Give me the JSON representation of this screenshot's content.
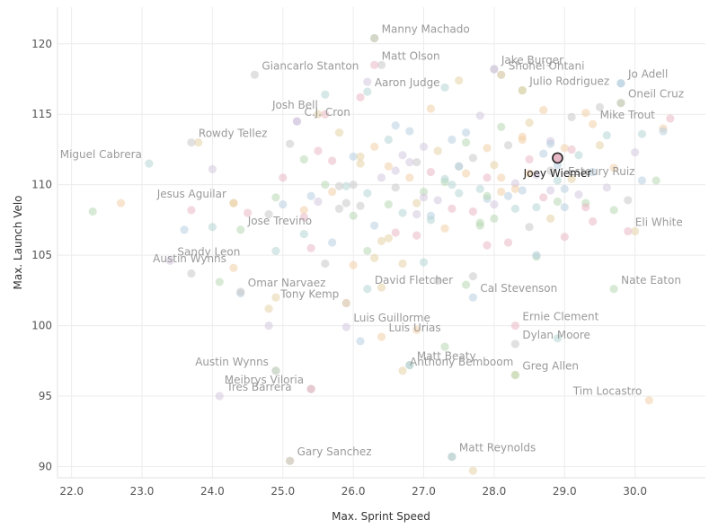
{
  "chart_data": {
    "type": "scatter",
    "xlabel": "Max. Sprint Speed",
    "ylabel": "Max. Launch Velo",
    "xlim": [
      21.8,
      31.0
    ],
    "ylim": [
      89.2,
      122.6
    ],
    "x_ticks": [
      22.0,
      23.0,
      24.0,
      25.0,
      26.0,
      27.0,
      28.0,
      29.0,
      30.0
    ],
    "y_ticks": [
      90,
      95,
      100,
      105,
      110,
      115,
      120
    ],
    "x_tick_labels": [
      "22.0",
      "23.0",
      "24.0",
      "25.0",
      "26.0",
      "27.0",
      "28.0",
      "29.0",
      "30.0"
    ],
    "y_tick_labels": [
      "90",
      "95",
      "100",
      "105",
      "110",
      "115",
      "120"
    ],
    "grid": true,
    "colors": {
      "palette": [
        "#b8d9b5",
        "#f2cfa7",
        "#b8cfe0",
        "#e9b8c4",
        "#c9c9c9",
        "#e6d2a5",
        "#d4c6de",
        "#b5d6d3"
      ],
      "highlight_fill": "#e7b8c6",
      "highlight_stroke": "#222222"
    },
    "highlight": {
      "name": "Joey Wiemer",
      "x": 28.9,
      "y": 111.9
    },
    "labeled_points": [
      {
        "name": "Manny Machado",
        "x": 26.3,
        "y": 120.4
      },
      {
        "name": "Matt Olson",
        "x": 26.3,
        "y": 118.5
      },
      {
        "name": "Jake Burger",
        "x": 28.0,
        "y": 118.2
      },
      {
        "name": "Shohei Ohtani",
        "x": 28.1,
        "y": 117.8
      },
      {
        "name": "Giancarlo Stanton",
        "x": 24.6,
        "y": 117.8
      },
      {
        "name": "Aaron Judge",
        "x": 26.2,
        "y": 116.6
      },
      {
        "name": "Jo Adell",
        "x": 29.8,
        "y": 117.2
      },
      {
        "name": "Julio Rodriguez",
        "x": 28.4,
        "y": 116.7
      },
      {
        "name": "Oneil Cruz",
        "x": 29.8,
        "y": 115.8
      },
      {
        "name": "Josh Bell",
        "x": 25.6,
        "y": 115.0
      },
      {
        "name": "C.J. Cron",
        "x": 25.2,
        "y": 114.5
      },
      {
        "name": "Mike Trout",
        "x": 29.4,
        "y": 114.3
      },
      {
        "name": "Rowdy Tellez",
        "x": 23.7,
        "y": 113.0
      },
      {
        "name": "Miguel Cabrera",
        "x": 23.1,
        "y": 111.5
      },
      {
        "name": "Esteury Ruiz",
        "x": 30.1,
        "y": 110.3
      },
      {
        "name": "Jesus Aguilar",
        "x": 24.3,
        "y": 108.7
      },
      {
        "name": "Jose Trevino",
        "x": 24.4,
        "y": 106.8
      },
      {
        "name": "Eli White",
        "x": 29.9,
        "y": 106.7
      },
      {
        "name": "Sandy Leon",
        "x": 23.4,
        "y": 104.6
      },
      {
        "name": "Austin Wynns",
        "x": 24.3,
        "y": 104.1
      },
      {
        "name": "Omar Narvaez",
        "x": 24.4,
        "y": 102.4
      },
      {
        "name": "David Fletcher",
        "x": 26.2,
        "y": 102.6
      },
      {
        "name": "Cal Stevenson",
        "x": 27.7,
        "y": 102.0
      },
      {
        "name": "Tony Kemp",
        "x": 25.9,
        "y": 101.6
      },
      {
        "name": "Nate Eaton",
        "x": 29.7,
        "y": 102.6
      },
      {
        "name": "Ernie Clement",
        "x": 28.3,
        "y": 100.0
      },
      {
        "name": "Luis Guillorme",
        "x": 25.9,
        "y": 99.9
      },
      {
        "name": "Luis Urias",
        "x": 26.4,
        "y": 99.2
      },
      {
        "name": "Dylan Moore",
        "x": 28.3,
        "y": 98.7
      },
      {
        "name": "Austin Wynns",
        "x": 24.9,
        "y": 96.8
      },
      {
        "name": "Matt Beaty",
        "x": 26.8,
        "y": 97.2
      },
      {
        "name": "Anthony Bemboom",
        "x": 26.7,
        "y": 96.8
      },
      {
        "name": "Greg Allen",
        "x": 28.3,
        "y": 96.5
      },
      {
        "name": "Meibrys Viloria",
        "x": 25.4,
        "y": 95.5
      },
      {
        "name": "Tres Barrera",
        "x": 24.1,
        "y": 95.0
      },
      {
        "name": "Tim Locastro",
        "x": 30.2,
        "y": 94.7
      },
      {
        "name": "Gary Sanchez",
        "x": 25.1,
        "y": 90.4
      },
      {
        "name": "Matt Reynolds",
        "x": 27.4,
        "y": 90.7
      }
    ],
    "points_x": [
      22.3,
      22.7,
      23.6,
      23.7,
      23.7,
      23.8,
      24.0,
      24.0,
      24.1,
      24.3,
      24.4,
      24.5,
      24.8,
      24.8,
      24.8,
      24.9,
      24.9,
      24.9,
      25.0,
      25.0,
      25.1,
      25.1,
      25.2,
      25.3,
      25.3,
      25.3,
      25.4,
      25.4,
      25.4,
      25.5,
      25.5,
      25.6,
      25.6,
      25.7,
      25.7,
      25.7,
      25.8,
      25.8,
      25.9,
      25.9,
      26.0,
      26.0,
      26.0,
      26.1,
      26.1,
      26.1,
      26.2,
      26.2,
      26.2,
      26.3,
      26.3,
      26.3,
      26.4,
      26.4,
      26.4,
      26.5,
      26.5,
      26.5,
      26.6,
      26.6,
      26.6,
      26.7,
      26.7,
      26.7,
      26.8,
      26.8,
      26.8,
      26.9,
      26.9,
      26.9,
      27.0,
      27.0,
      27.0,
      27.1,
      27.1,
      27.1,
      27.2,
      27.2,
      27.2,
      27.3,
      27.3,
      27.3,
      27.4,
      27.4,
      27.4,
      27.5,
      27.5,
      27.5,
      27.6,
      27.6,
      27.6,
      27.7,
      27.7,
      27.7,
      27.8,
      27.8,
      27.8,
      27.9,
      27.9,
      27.9,
      28.0,
      28.0,
      28.0,
      28.1,
      28.1,
      28.1,
      28.2,
      28.2,
      28.2,
      28.3,
      28.3,
      28.3,
      28.4,
      28.4,
      28.4,
      28.5,
      28.5,
      28.5,
      28.6,
      28.6,
      28.6,
      28.7,
      28.7,
      28.7,
      28.8,
      28.8,
      28.8,
      28.9,
      28.9,
      29.0,
      29.0,
      29.0,
      29.1,
      29.1,
      29.2,
      29.2,
      29.3,
      29.3,
      29.4,
      29.4,
      29.5,
      29.5,
      29.6,
      29.6,
      29.7,
      29.7,
      29.8,
      29.8,
      29.9,
      30.0,
      30.0,
      30.1,
      30.3,
      30.4,
      30.4,
      30.5,
      25.6,
      26.1,
      26.6,
      27.1,
      27.6,
      28.1,
      28.6,
      29.1,
      25.9,
      26.4,
      26.9,
      27.4,
      27.9,
      28.4,
      28.9,
      25.3,
      25.8,
      26.3,
      26.8,
      27.3,
      27.8,
      28.3,
      28.8,
      29.3,
      26.0,
      26.5,
      27.0,
      27.5,
      28.0,
      28.5,
      29.0,
      25.5,
      27.7,
      24.9,
      28.8,
      28.9,
      27.3,
      26.9,
      26.1,
      27.9
    ],
    "points_y": [
      108.1,
      108.7,
      106.8,
      108.2,
      103.7,
      113.0,
      111.1,
      107.0,
      103.1,
      108.7,
      102.3,
      108.0,
      107.9,
      101.2,
      100.0,
      105.3,
      109.1,
      96.8,
      108.6,
      110.5,
      112.9,
      90.4,
      114.5,
      106.5,
      111.8,
      108.2,
      109.2,
      105.5,
      95.5,
      115.0,
      108.8,
      116.4,
      110.0,
      109.5,
      105.9,
      111.7,
      108.3,
      113.7,
      101.6,
      109.9,
      107.8,
      104.3,
      112.0,
      116.2,
      108.5,
      111.5,
      117.3,
      109.4,
      105.3,
      112.7,
      107.1,
      120.4,
      118.5,
      102.7,
      110.5,
      113.2,
      108.6,
      111.3,
      114.2,
      106.6,
      109.8,
      104.4,
      112.1,
      108.0,
      97.2,
      110.5,
      113.8,
      106.4,
      111.6,
      108.7,
      112.7,
      104.5,
      109.5,
      115.4,
      107.8,
      110.9,
      103.2,
      112.4,
      108.9,
      116.9,
      110.2,
      106.9,
      113.2,
      108.3,
      90.7,
      117.4,
      111.3,
      109.4,
      102.9,
      110.8,
      113.7,
      108.1,
      111.9,
      89.7,
      114.9,
      109.7,
      107.3,
      112.6,
      109.0,
      105.7,
      118.2,
      111.4,
      108.6,
      117.8,
      114.1,
      110.5,
      109.2,
      105.9,
      112.8,
      96.5,
      110.1,
      108.3,
      116.7,
      113.4,
      109.6,
      111.8,
      107.0,
      114.4,
      110.7,
      108.4,
      104.9,
      115.3,
      112.2,
      109.1,
      111.0,
      107.6,
      113.1,
      110.3,
      108.8,
      112.6,
      109.7,
      106.3,
      114.8,
      110.4,
      109.3,
      112.1,
      108.7,
      115.1,
      110.9,
      107.4,
      115.5,
      112.8,
      109.8,
      113.5,
      108.2,
      111.2,
      117.2,
      115.8,
      108.9,
      106.7,
      112.3,
      113.6,
      110.3,
      114.0,
      113.8,
      114.7,
      104.4,
      112.0,
      111.0,
      107.5,
      113.0,
      109.5,
      105.0,
      112.5,
      108.7,
      106.0,
      107.9,
      110.0,
      109.2,
      113.2,
      111.4,
      107.7,
      109.9,
      104.8,
      111.6,
      110.4,
      107.1,
      109.7,
      112.9,
      108.4,
      110.0,
      106.2,
      109.1,
      111.3,
      107.6,
      110.8,
      108.4,
      112.4,
      103.5,
      102.0,
      109.6,
      99.1,
      98.5,
      99.7,
      98.9,
      110.5,
      109.4
    ],
    "series": []
  }
}
